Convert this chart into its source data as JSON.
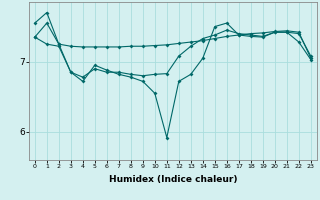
{
  "xlabel": "Humidex (Indice chaleur)",
  "bg_color": "#d4f0f0",
  "line_color": "#006868",
  "grid_color": "#aadddd",
  "x": [
    0,
    1,
    2,
    3,
    4,
    5,
    6,
    7,
    8,
    9,
    10,
    11,
    12,
    13,
    14,
    15,
    16,
    17,
    18,
    19,
    20,
    21,
    22,
    23
  ],
  "line1": [
    7.35,
    7.55,
    7.25,
    7.22,
    7.21,
    7.21,
    7.21,
    7.21,
    7.22,
    7.22,
    7.23,
    7.24,
    7.26,
    7.28,
    7.3,
    7.33,
    7.36,
    7.38,
    7.4,
    7.41,
    7.43,
    7.44,
    7.42,
    7.05
  ],
  "line2": [
    7.55,
    7.7,
    7.25,
    6.85,
    6.72,
    6.95,
    6.88,
    6.82,
    6.78,
    6.72,
    6.55,
    5.92,
    6.72,
    6.82,
    7.05,
    7.5,
    7.55,
    7.38,
    7.36,
    7.35,
    7.42,
    7.42,
    7.28,
    7.03
  ],
  "line3": [
    7.35,
    7.25,
    7.22,
    6.85,
    6.78,
    6.9,
    6.85,
    6.85,
    6.82,
    6.8,
    6.82,
    6.83,
    7.08,
    7.22,
    7.33,
    7.38,
    7.45,
    7.4,
    7.38,
    7.36,
    7.42,
    7.42,
    7.4,
    7.08
  ],
  "yticks": [
    6,
    7
  ],
  "ylim": [
    5.6,
    7.85
  ],
  "xlim": [
    -0.5,
    23.5
  ]
}
